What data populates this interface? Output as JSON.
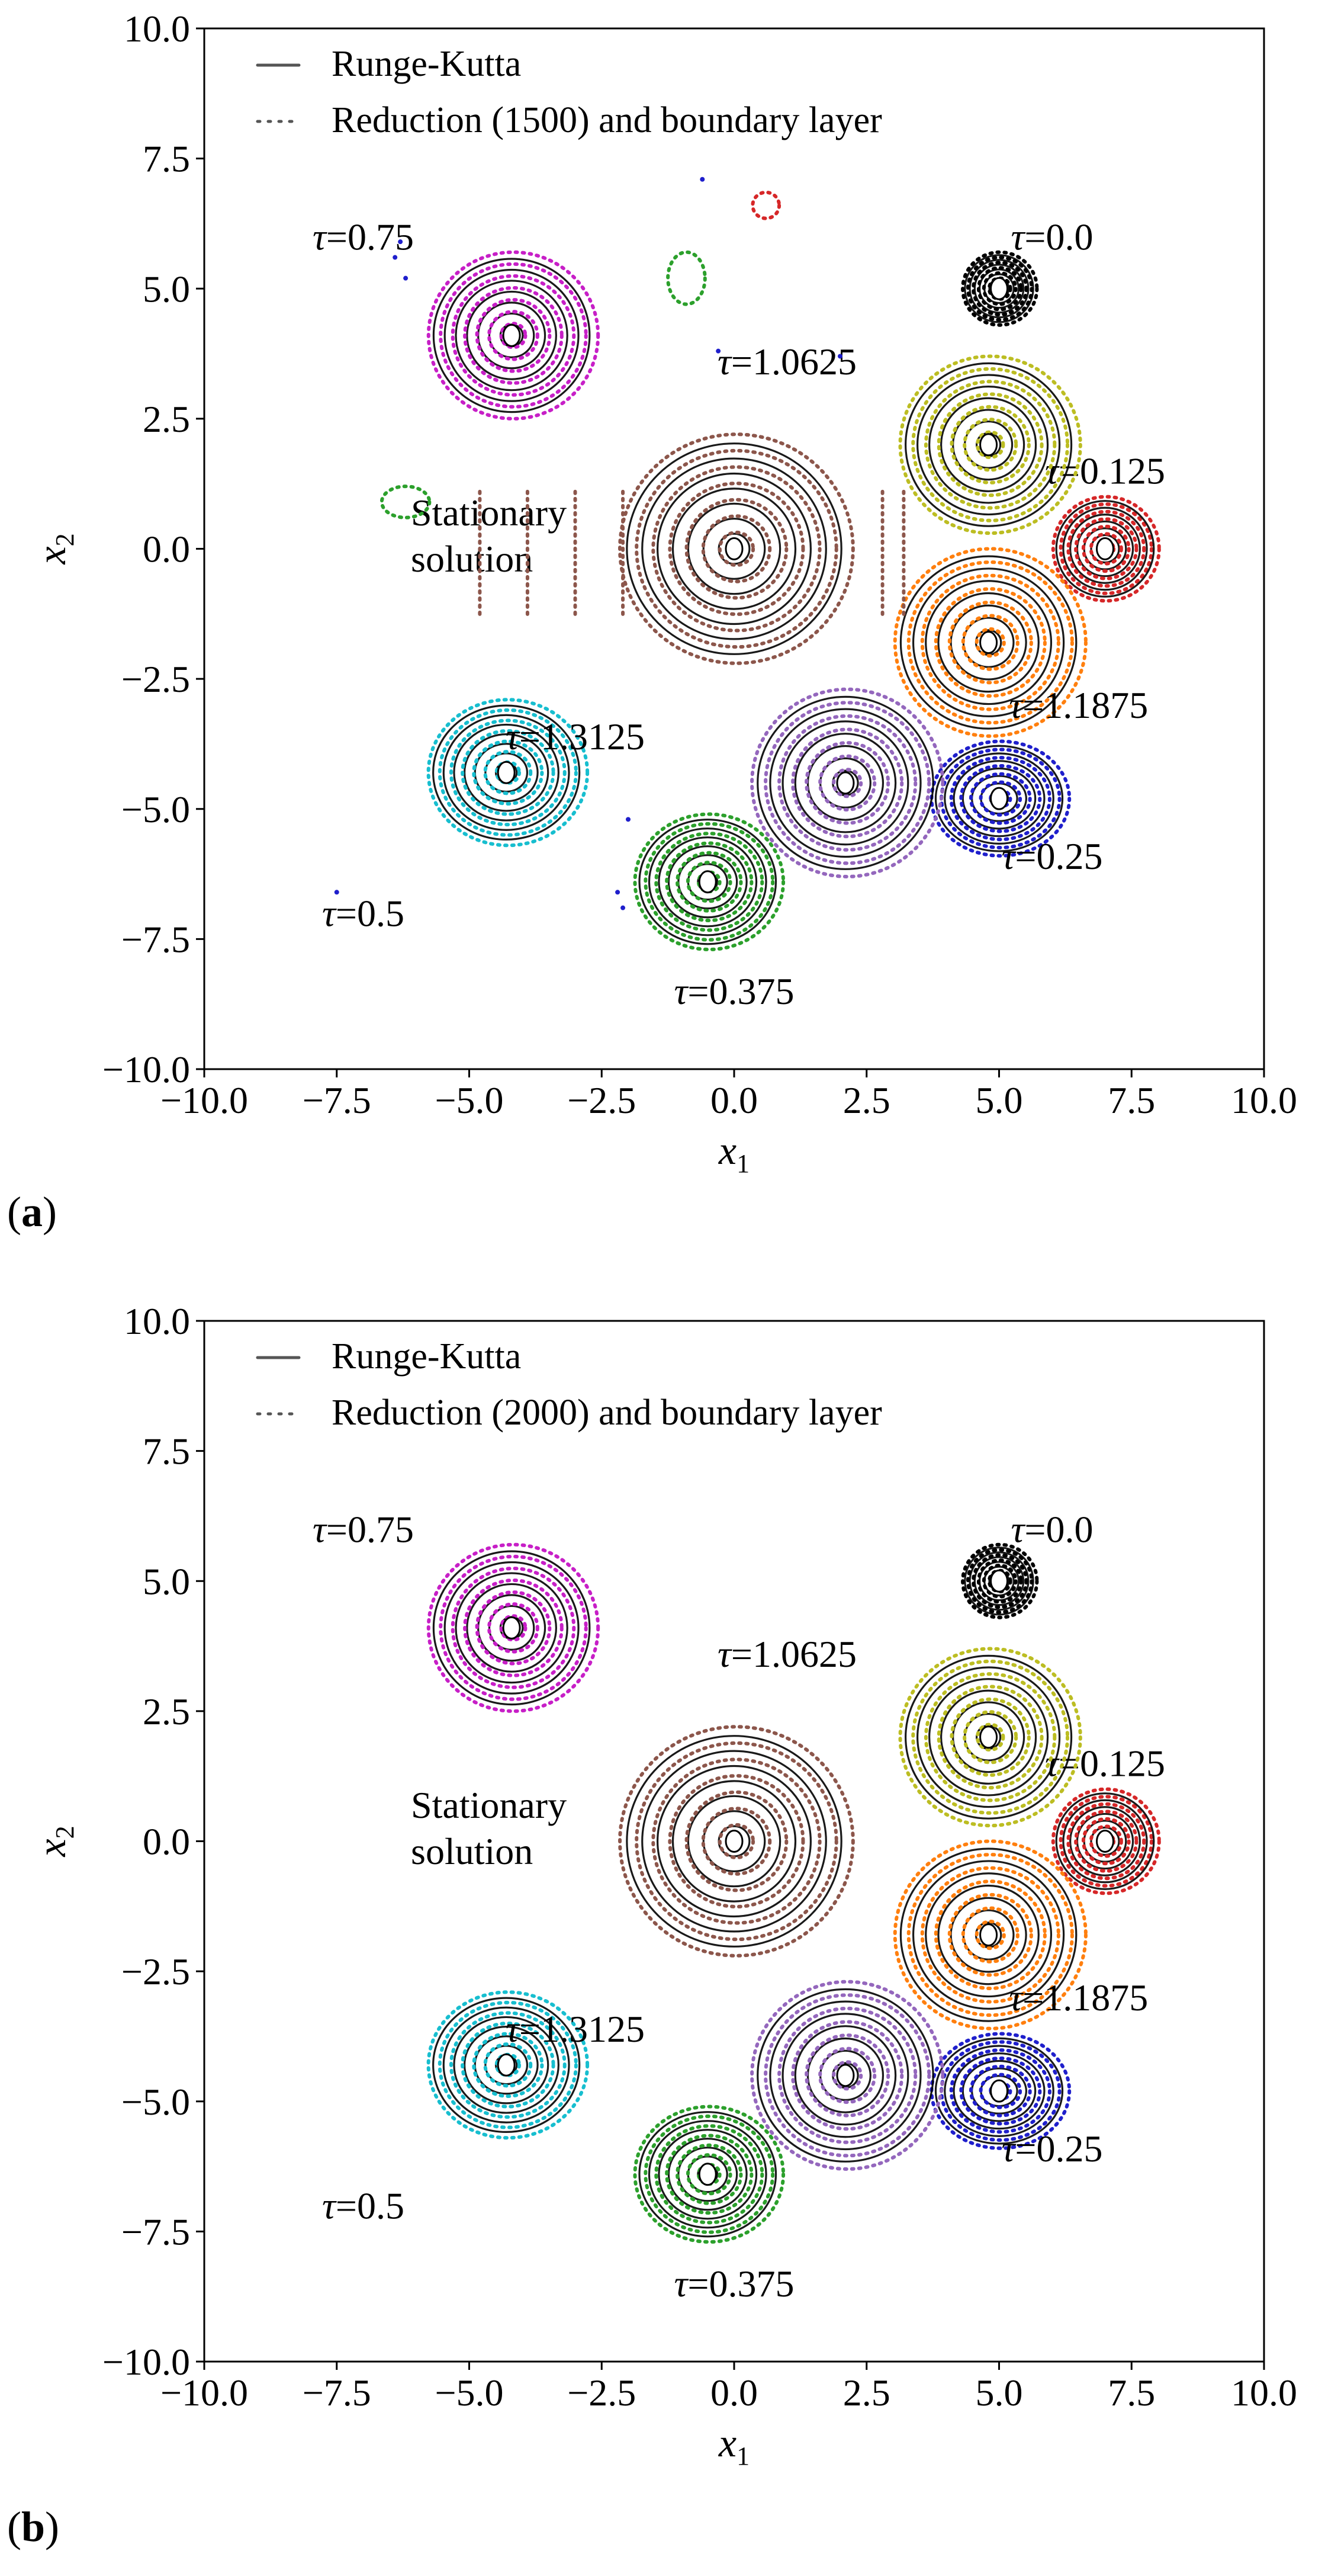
{
  "chart_data": [
    {
      "type": "contour",
      "panel_label": "a",
      "xlabel": "x1",
      "ylabel": "x2",
      "xlim": [
        -10.0,
        10.0
      ],
      "ylim": [
        -10.0,
        10.0
      ],
      "xticks": [
        "−10.0",
        "−7.5",
        "−5.0",
        "−2.5",
        "0.0",
        "2.5",
        "5.0",
        "7.5",
        "10.0"
      ],
      "yticks": [
        "10.0",
        "7.5",
        "5.0",
        "2.5",
        "0.0",
        "−2.5",
        "−5.0",
        "−7.5",
        "−10.0"
      ],
      "legend": [
        {
          "label": "Runge-Kutta",
          "style": "solid"
        },
        {
          "label": "Reduction (1500) and boundary layer",
          "style": "dotted"
        }
      ],
      "series": [
        {
          "name": "τ=0.0",
          "label": "τ=0.0",
          "cx": 5.0,
          "cy": 5.0,
          "rx": 0.7,
          "ry": 0.7,
          "color": "#000000",
          "label_x": 6.0,
          "label_y": 6.0
        },
        {
          "name": "τ=0.125",
          "label": "τ=0.125",
          "cx": 7.0,
          "cy": 0.0,
          "rx": 1.0,
          "ry": 1.0,
          "color": "#d62728",
          "label_x": 7.0,
          "label_y": 1.5
        },
        {
          "name": "τ=0.25",
          "label": "τ=0.25",
          "cx": 5.0,
          "cy": -4.8,
          "rx": 1.3,
          "ry": 1.1,
          "color": "#1f1fcc",
          "label_x": 6.0,
          "label_y": -5.9
        },
        {
          "name": "τ=0.375",
          "label": "τ=0.375",
          "cx": -0.5,
          "cy": -6.4,
          "rx": 1.4,
          "ry": 1.3,
          "color": "#2ca02c",
          "label_x": 0.0,
          "label_y": -8.5
        },
        {
          "name": "τ=0.5",
          "label": "τ=0.5",
          "cx": -4.3,
          "cy": -4.3,
          "rx": 1.5,
          "ry": 1.4,
          "color": "#17becf",
          "label_x": -7.0,
          "label_y": -7.0
        },
        {
          "name": "τ=0.75",
          "label": "τ=0.75",
          "cx": -4.2,
          "cy": 4.1,
          "rx": 1.6,
          "ry": 1.6,
          "color": "#c71fc7",
          "label_x": -7.0,
          "label_y": 6.0
        },
        {
          "name": "τ=1.0625",
          "label": "τ=1.0625",
          "cx": 4.8,
          "cy": 2.0,
          "rx": 1.7,
          "ry": 1.7,
          "color": "#bcbd22",
          "label_x": 1.0,
          "label_y": 3.6
        },
        {
          "name": "τ=1.1875",
          "label": "τ=1.1875",
          "cx": 4.8,
          "cy": -1.8,
          "rx": 1.8,
          "ry": 1.8,
          "color": "#ff7f0e",
          "label_x": 6.5,
          "label_y": -3.0
        },
        {
          "name": "τ=1.3125",
          "label": "τ=1.3125",
          "cx": 2.1,
          "cy": -4.5,
          "rx": 1.8,
          "ry": 1.8,
          "color": "#9467bd",
          "label_x": -3.0,
          "label_y": -3.6
        },
        {
          "name": "Stationary solution",
          "label": "Stationary solution",
          "cx": 0.0,
          "cy": 0.0,
          "rx": 2.2,
          "ry": 2.2,
          "color": "#8c564b",
          "label_x": -6.0,
          "label_y": 0.0
        }
      ],
      "stationary_label": [
        "Stationary",
        "solution"
      ]
    },
    {
      "type": "contour",
      "panel_label": "b",
      "xlabel": "x1",
      "ylabel": "x2",
      "xlim": [
        -10.0,
        10.0
      ],
      "ylim": [
        -10.0,
        10.0
      ],
      "xticks": [
        "−10.0",
        "−7.5",
        "−5.0",
        "−2.5",
        "0.0",
        "2.5",
        "5.0",
        "7.5",
        "10.0"
      ],
      "yticks": [
        "10.0",
        "7.5",
        "5.0",
        "2.5",
        "0.0",
        "−2.5",
        "−5.0",
        "−7.5",
        "−10.0"
      ],
      "legend": [
        {
          "label": "Runge-Kutta",
          "style": "solid"
        },
        {
          "label": "Reduction (2000) and boundary layer",
          "style": "dotted"
        }
      ],
      "series": [
        {
          "name": "τ=0.0",
          "label": "τ=0.0",
          "cx": 5.0,
          "cy": 5.0,
          "rx": 0.7,
          "ry": 0.7,
          "color": "#000000",
          "label_x": 6.0,
          "label_y": 6.0
        },
        {
          "name": "τ=0.125",
          "label": "τ=0.125",
          "cx": 7.0,
          "cy": 0.0,
          "rx": 1.0,
          "ry": 1.0,
          "color": "#d62728",
          "label_x": 7.0,
          "label_y": 1.5
        },
        {
          "name": "τ=0.25",
          "label": "τ=0.25",
          "cx": 5.0,
          "cy": -4.8,
          "rx": 1.3,
          "ry": 1.1,
          "color": "#1f1fcc",
          "label_x": 6.0,
          "label_y": -5.9
        },
        {
          "name": "τ=0.375",
          "label": "τ=0.375",
          "cx": -0.5,
          "cy": -6.4,
          "rx": 1.4,
          "ry": 1.3,
          "color": "#2ca02c",
          "label_x": 0.0,
          "label_y": -8.5
        },
        {
          "name": "τ=0.5",
          "label": "τ=0.5",
          "cx": -4.3,
          "cy": -4.3,
          "rx": 1.5,
          "ry": 1.4,
          "color": "#17becf",
          "label_x": -7.0,
          "label_y": -7.0
        },
        {
          "name": "τ=0.75",
          "label": "τ=0.75",
          "cx": -4.2,
          "cy": 4.1,
          "rx": 1.6,
          "ry": 1.6,
          "color": "#c71fc7",
          "label_x": -7.0,
          "label_y": 6.0
        },
        {
          "name": "τ=1.0625",
          "label": "τ=1.0625",
          "cx": 4.8,
          "cy": 2.0,
          "rx": 1.7,
          "ry": 1.7,
          "color": "#bcbd22",
          "label_x": 1.0,
          "label_y": 3.6
        },
        {
          "name": "τ=1.1875",
          "label": "τ=1.1875",
          "cx": 4.8,
          "cy": -1.8,
          "rx": 1.8,
          "ry": 1.8,
          "color": "#ff7f0e",
          "label_x": 6.5,
          "label_y": -3.0
        },
        {
          "name": "τ=1.3125",
          "label": "τ=1.3125",
          "cx": 2.1,
          "cy": -4.5,
          "rx": 1.8,
          "ry": 1.8,
          "color": "#9467bd",
          "label_x": -3.0,
          "label_y": -3.6
        },
        {
          "name": "Stationary solution",
          "label": "Stationary solution",
          "cx": 0.0,
          "cy": 0.0,
          "rx": 2.2,
          "ry": 2.2,
          "color": "#8c564b",
          "label_x": -6.0,
          "label_y": 0.0
        }
      ],
      "stationary_label": [
        "Stationary",
        "solution"
      ]
    }
  ]
}
